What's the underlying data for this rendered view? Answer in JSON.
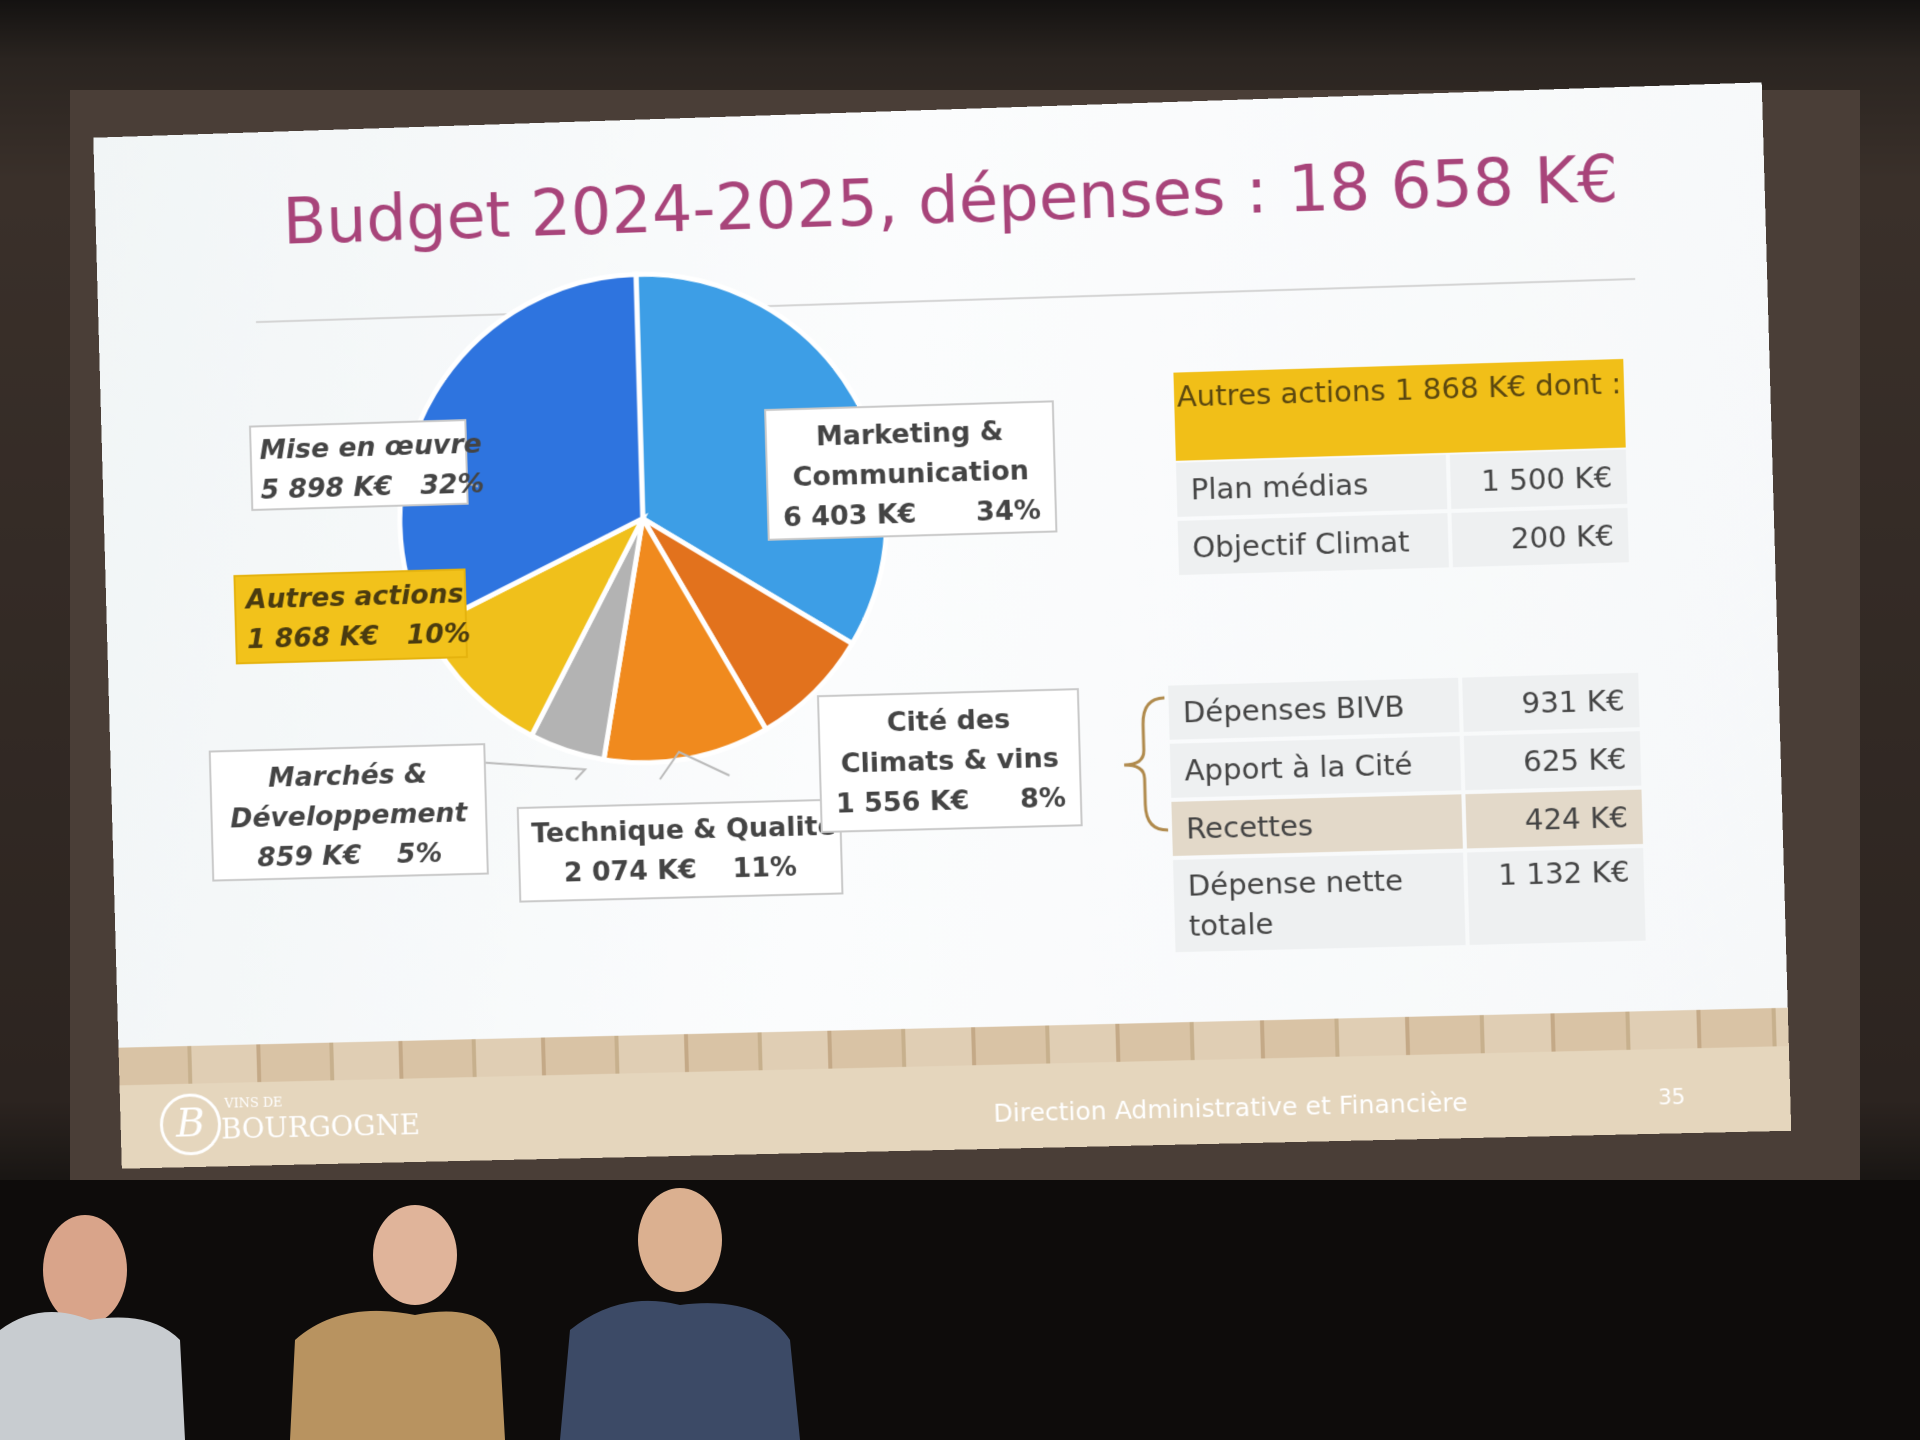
{
  "slide": {
    "title": "Budget 2024-2025, dépenses : 18 658 K€",
    "footer_department": "Direction Administrative et Financière",
    "page_number": "35",
    "logo_small": "VINS DE",
    "logo_big": "BOURGOGNE",
    "logo_letter": "B"
  },
  "chart_data": {
    "type": "pie",
    "title": "Budget 2024-2025, dépenses : 18 658 K€",
    "slices": [
      {
        "label": "Marketing & Communication",
        "amount": "6 403 K€",
        "pct": "34%",
        "value": 34,
        "color": "#3d9ee6"
      },
      {
        "label": "Cité des Climats & vins",
        "amount": "1 556 K€",
        "pct": "8%",
        "value": 8,
        "color": "#e2721d"
      },
      {
        "label": "Technique & Qualité",
        "amount": "2 074 K€",
        "pct": "11%",
        "value": 11,
        "color": "#f08a1e"
      },
      {
        "label": "Marchés & Développement",
        "amount": "859 K€",
        "pct": "5%",
        "value": 5,
        "color": "#b3b3b3"
      },
      {
        "label": "Autres actions",
        "amount": "1 868 K€",
        "pct": "10%",
        "value": 10,
        "color": "#f0c01b"
      },
      {
        "label": "Mise en œuvre",
        "amount": "5 898 K€",
        "pct": "32%",
        "value": 32,
        "color": "#2e74df"
      }
    ]
  },
  "labels": {
    "mise_line1": "Mise en œuvre",
    "mise_amount": "5 898 K€",
    "mise_pct": "32%",
    "mkt_line1": "Marketing &",
    "mkt_line2": "Communication",
    "mkt_amount": "6 403 K€",
    "mkt_pct": "34%",
    "autres_line1": "Autres actions",
    "autres_amount": "1 868 K€",
    "autres_pct": "10%",
    "marches_line1": "Marchés &",
    "marches_line2": "Développement",
    "marches_amount": "859 K€",
    "marches_pct": "5%",
    "tech_line1": "Technique & Qualité",
    "tech_amount": "2 074 K€",
    "tech_pct": "11%",
    "cite_line1": "Cité des",
    "cite_line2": "Climats & vins",
    "cite_amount": "1 556 K€",
    "cite_pct": "8%"
  },
  "autres_table": {
    "header": "Autres actions 1 868 K€ dont :",
    "rows": [
      {
        "label": "Plan médias",
        "value": "1 500 K€"
      },
      {
        "label": "Objectif Climat",
        "value": "200 K€"
      }
    ]
  },
  "cite_table": {
    "rows": [
      {
        "label": "Dépenses BIVB",
        "value": "931 K€"
      },
      {
        "label": "Apport à la Cité",
        "value": "625 K€"
      },
      {
        "label": "Recettes",
        "value": "424 K€"
      },
      {
        "label": "Dépense nette totale",
        "value": "1 132 K€"
      }
    ]
  }
}
